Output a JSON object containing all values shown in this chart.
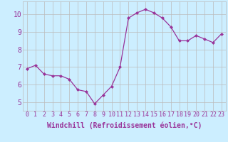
{
  "x": [
    0,
    1,
    2,
    3,
    4,
    5,
    6,
    7,
    8,
    9,
    10,
    11,
    12,
    13,
    14,
    15,
    16,
    17,
    18,
    19,
    20,
    21,
    22,
    23
  ],
  "y": [
    6.9,
    7.1,
    6.6,
    6.5,
    6.5,
    6.3,
    5.7,
    5.6,
    4.9,
    5.4,
    5.9,
    7.0,
    9.8,
    10.1,
    10.3,
    10.1,
    9.8,
    9.3,
    8.5,
    8.5,
    8.8,
    8.6,
    8.4,
    8.9
  ],
  "line_color": "#993399",
  "marker": "D",
  "marker_size": 2,
  "bg_color": "#cceeff",
  "grid_color": "#bbbbbb",
  "xlabel": "Windchill (Refroidissement éolien,°C)",
  "xlabel_color": "#993399",
  "tick_color": "#993399",
  "xlabel_fontsize": 7,
  "tick_fontsize": 6,
  "ytick_fontsize": 7,
  "yticks": [
    5,
    6,
    7,
    8,
    9,
    10
  ],
  "xlim": [
    -0.5,
    23.5
  ],
  "ylim": [
    4.5,
    10.75
  ]
}
